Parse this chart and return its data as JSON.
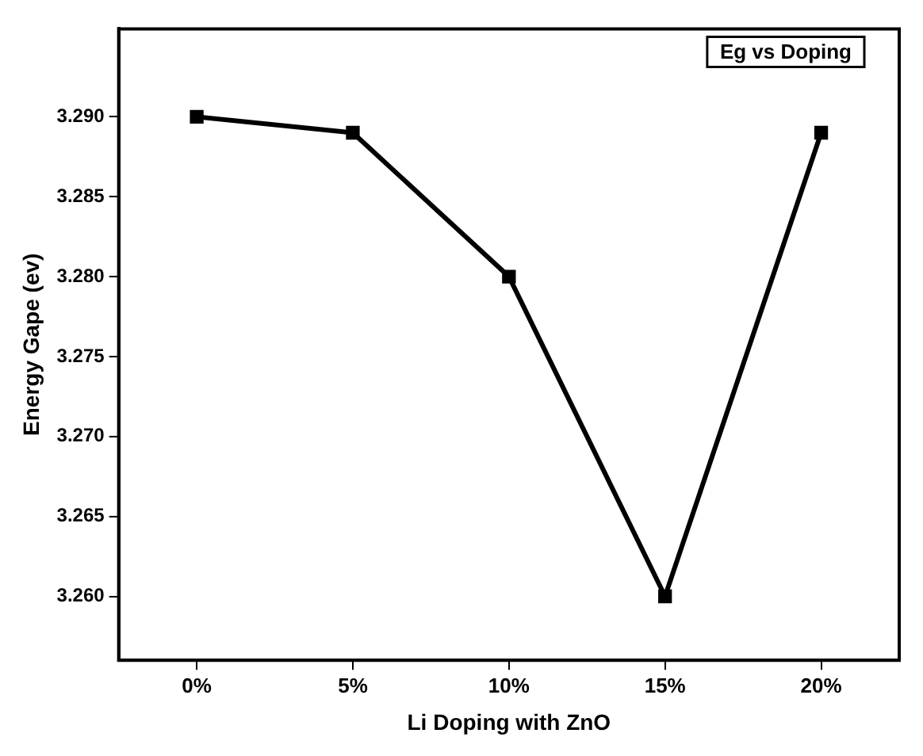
{
  "chart_data": {
    "type": "line",
    "xlabel": "Li Doping with ZnO",
    "ylabel": "Energy Gape (ev)",
    "categories": [
      "0%",
      "5%",
      "10%",
      "15%",
      "20%"
    ],
    "series": [
      {
        "color": "#000000",
        "values": [
          3.29,
          3.289,
          3.28,
          3.26,
          3.289
        ]
      }
    ],
    "ylim": [
      3.256,
      3.2955
    ],
    "yticks": [
      {
        "value": 3.26,
        "label": "3.260"
      },
      {
        "value": 3.265,
        "label": "3.265"
      },
      {
        "value": 3.27,
        "label": "3.270"
      },
      {
        "value": 3.275,
        "label": "3.275"
      },
      {
        "value": 3.28,
        "label": "3.280"
      },
      {
        "value": 3.285,
        "label": "3.285"
      },
      {
        "value": 3.29,
        "label": "3.290"
      }
    ],
    "annotations": [
      "Eg vs Doping"
    ],
    "grid": false,
    "legend": false,
    "marker": "square",
    "line_style": "solid"
  }
}
